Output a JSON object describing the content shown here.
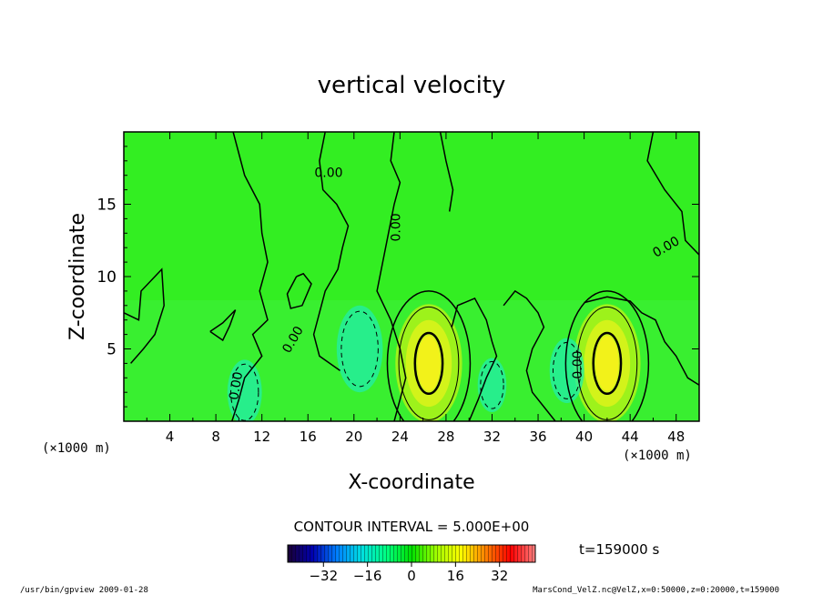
{
  "chart_data": {
    "type": "heatmap",
    "title": "vertical velocity",
    "xlabel": "X-coordinate",
    "ylabel": "Z-coordinate",
    "x_units_left": "(×1000 m)",
    "x_units_right": "(×1000 m)",
    "xlim": [
      0,
      50
    ],
    "ylim": [
      0,
      20
    ],
    "x_ticks": [
      4,
      8,
      12,
      16,
      20,
      24,
      28,
      32,
      36,
      40,
      44,
      48
    ],
    "y_ticks": [
      5,
      10,
      15
    ],
    "contour_interval_label": "CONTOUR INTERVAL = 5.000E+00",
    "contour_labels": [
      "0.00",
      "0.00",
      "0.00",
      "0.00",
      "0.00",
      "0.00"
    ],
    "colorbar": {
      "min": -45,
      "max": 45,
      "ticks": [
        -32,
        -16,
        0,
        16,
        32
      ],
      "stops": [
        "#1a0033",
        "#0000b0",
        "#0080ff",
        "#00e0e0",
        "#00ff80",
        "#00e000",
        "#a0ff00",
        "#ffff00",
        "#ff8000",
        "#ff0000",
        "#ff8080"
      ]
    },
    "updraft_maxima": [
      {
        "x": 26.5,
        "z": 4.0,
        "value": 12
      },
      {
        "x": 42.0,
        "z": 4.0,
        "value": 13
      }
    ],
    "downdraft_minima": [
      {
        "x": 20.5,
        "z": 5.0,
        "value": -8
      },
      {
        "x": 10.5,
        "z": 2.0,
        "value": -6
      },
      {
        "x": 38.5,
        "z": 3.5,
        "value": -6
      },
      {
        "x": 32.0,
        "z": 2.5,
        "value": -5
      }
    ],
    "grid": false
  },
  "time_label": "t=159000 s",
  "footer": {
    "left": "/usr/bin/gpview  2009-01-28",
    "right": "MarsCond_VelZ.nc@VelZ,x=0:50000,z=0:20000,t=159000"
  }
}
